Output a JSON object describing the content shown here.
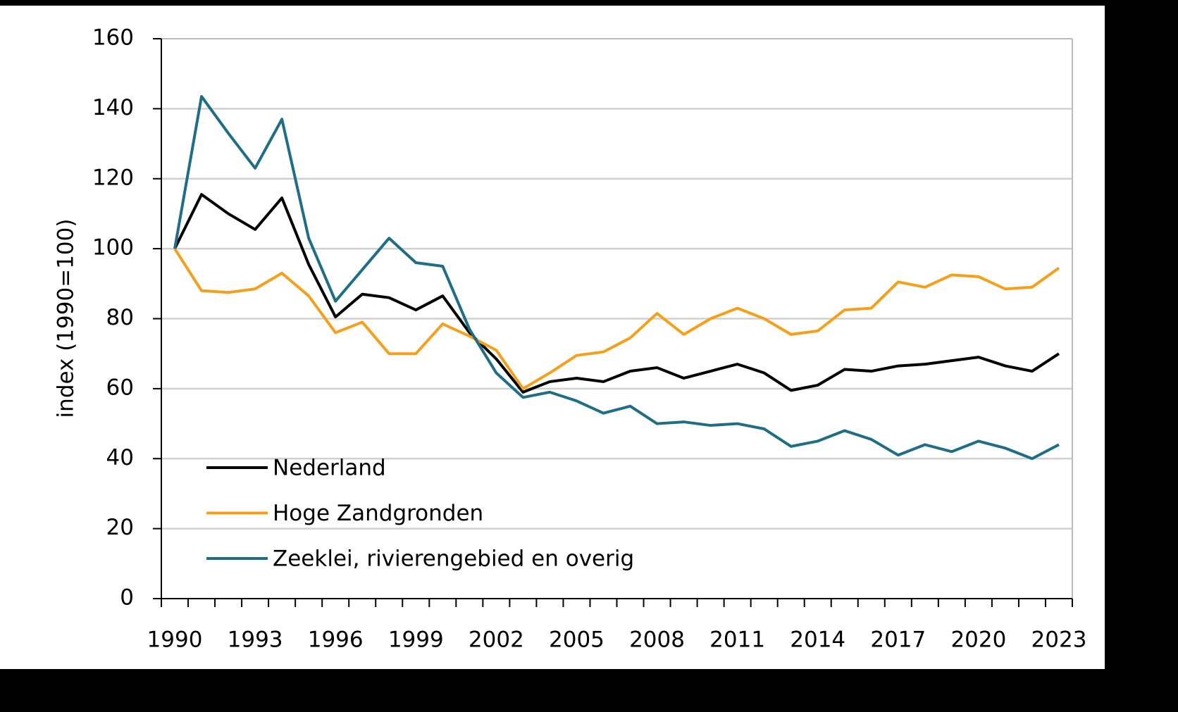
{
  "chart_data": {
    "type": "line",
    "y_label": "index (1990=100)",
    "categories": [
      "1990",
      null,
      null,
      "1993",
      null,
      null,
      "1996",
      null,
      null,
      "1999",
      null,
      null,
      "2002",
      null,
      null,
      "2005",
      null,
      null,
      "2008",
      null,
      null,
      "2011",
      null,
      null,
      "2014",
      null,
      null,
      "2017",
      null,
      null,
      "2020",
      null,
      null,
      "2023"
    ],
    "series": [
      {
        "name": "Nederland",
        "color": "#000000",
        "values": [
          100,
          115.5,
          110,
          105.5,
          114.5,
          95.5,
          80.5,
          87,
          86,
          82.5,
          86.5,
          76,
          68.5,
          59,
          62,
          63,
          62,
          65,
          66,
          63,
          65,
          67,
          64.5,
          59.5,
          61,
          65.5,
          65,
          66.5,
          67,
          68,
          69,
          66.5,
          65,
          70
        ]
      },
      {
        "name": "Hoge Zandgronden",
        "color": "#f5a01a",
        "values": [
          100,
          88,
          87.5,
          88.5,
          93,
          86.5,
          76,
          79,
          70,
          70,
          78.5,
          75,
          71,
          60,
          64.5,
          69.5,
          70.5,
          74.5,
          81.5,
          75.5,
          80,
          83,
          80,
          75.5,
          76.5,
          82.5,
          83,
          90.5,
          89,
          92.5,
          92,
          88.5,
          89,
          94.5
        ]
      },
      {
        "name": "Zeeklei, rivierengebied en overig",
        "color": "#1f6e86",
        "values": [
          100,
          143.5,
          133,
          123,
          137,
          103,
          85,
          94,
          103,
          96,
          95,
          77,
          64.5,
          57.5,
          59,
          56.5,
          53,
          55,
          50,
          50.5,
          49.5,
          50,
          48.5,
          43.5,
          45,
          48,
          45.5,
          41,
          44,
          42,
          45,
          43,
          40,
          44
        ]
      }
    ],
    "ylim": [
      0,
      160
    ],
    "yticks": [
      0,
      20,
      40,
      60,
      80,
      100,
      120,
      140,
      160
    ],
    "grid": true,
    "legend": "lower left"
  }
}
